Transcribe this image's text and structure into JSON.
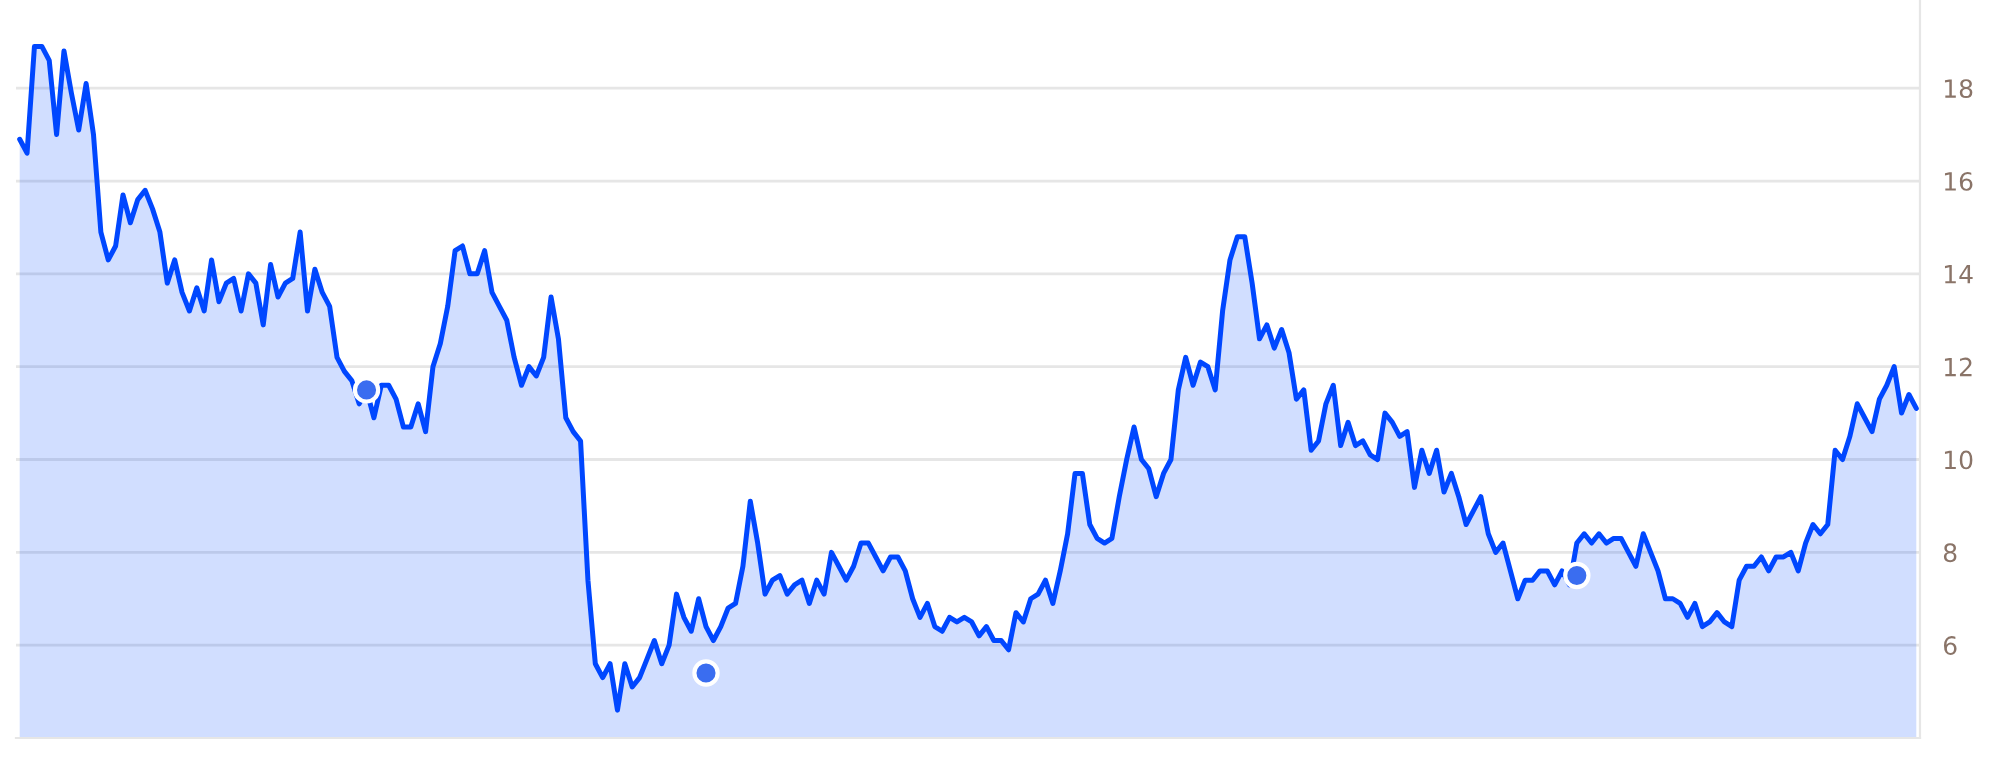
{
  "chart_data": {
    "type": "area",
    "categories": [
      null,
      null,
      null,
      null,
      null,
      null,
      null,
      null,
      null,
      null,
      null,
      null,
      null,
      null,
      null,
      null,
      null,
      null,
      null,
      null,
      null,
      null,
      null,
      null,
      null,
      null,
      null,
      null,
      null,
      null,
      null,
      null,
      null,
      null,
      null,
      null,
      null,
      null,
      null,
      null,
      null,
      null,
      null,
      null,
      null,
      null,
      null,
      null,
      null,
      null,
      null,
      null,
      null,
      null,
      null,
      null,
      null,
      null,
      null,
      null,
      null,
      null,
      null,
      null,
      null,
      null,
      null,
      null,
      null,
      null,
      null,
      null,
      null,
      null,
      null,
      null,
      null,
      null,
      null,
      null,
      null,
      null,
      null,
      null,
      null,
      null,
      null,
      null,
      null,
      null,
      null,
      null,
      null,
      null,
      null,
      null,
      null,
      null,
      null,
      null,
      null,
      null,
      null,
      null,
      null,
      null,
      null,
      null,
      null,
      null,
      null,
      null,
      null,
      null,
      null,
      null,
      null,
      null,
      null,
      null,
      null,
      null,
      null,
      null,
      null,
      null,
      null,
      null,
      null,
      null,
      null,
      null,
      null,
      null,
      null,
      null,
      null,
      null,
      null,
      null,
      null,
      null,
      null,
      null,
      null,
      null,
      null,
      null,
      null,
      null,
      null,
      null,
      null,
      null,
      null,
      null,
      null,
      null,
      null,
      null,
      null,
      null,
      null,
      null,
      null,
      null,
      null,
      null,
      null,
      null,
      null,
      null,
      null,
      null,
      null,
      null,
      null,
      null,
      null,
      null,
      null,
      null,
      null,
      null,
      null,
      null,
      null,
      null,
      null,
      null,
      null,
      null,
      null,
      null,
      null,
      null,
      null,
      null,
      null,
      null,
      null,
      null,
      null,
      null,
      null,
      null,
      null,
      null,
      null,
      null,
      null,
      null,
      null,
      null,
      null,
      null,
      null,
      null,
      null,
      null,
      null,
      null,
      null,
      null,
      null,
      null,
      null,
      null,
      null,
      null,
      null,
      null,
      null,
      null,
      null,
      null,
      null,
      null,
      null,
      null,
      null,
      null,
      null,
      null,
      null,
      null,
      null,
      null,
      null,
      null,
      null,
      null,
      null,
      null,
      null,
      null,
      null,
      null
    ],
    "series": [
      {
        "color": "#0047ff",
        "values": [
          16.9,
          16.6,
          18.9,
          18.9,
          18.6,
          17.0,
          18.8,
          17.9,
          17.1,
          18.1,
          17.0,
          14.9,
          14.3,
          14.6,
          15.7,
          15.1,
          15.6,
          15.8,
          15.4,
          14.9,
          13.8,
          14.3,
          13.6,
          13.2,
          13.7,
          13.2,
          14.3,
          13.4,
          13.8,
          13.9,
          13.2,
          14.0,
          13.8,
          12.9,
          14.2,
          13.5,
          13.8,
          13.9,
          14.9,
          13.2,
          14.1,
          13.6,
          13.3,
          12.2,
          11.9,
          11.7,
          11.2,
          11.5,
          10.9,
          11.6,
          11.6,
          11.3,
          10.7,
          10.7,
          11.2,
          10.6,
          12.0,
          12.5,
          13.3,
          14.5,
          14.6,
          14.0,
          14.0,
          14.5,
          13.6,
          13.3,
          13.0,
          12.2,
          11.6,
          12.0,
          11.8,
          12.2,
          13.5,
          12.6,
          10.9,
          10.6,
          10.4,
          7.4,
          5.6,
          5.3,
          5.6,
          4.6,
          5.6,
          5.1,
          5.3,
          5.7,
          6.1,
          5.6,
          6.0,
          7.1,
          6.6,
          6.3,
          7.0,
          6.4,
          6.1,
          6.4,
          6.8,
          6.9,
          7.7,
          9.1,
          8.2,
          7.1,
          7.4,
          7.5,
          7.1,
          7.3,
          7.4,
          6.9,
          7.4,
          7.1,
          8.0,
          7.7,
          7.4,
          7.7,
          8.2,
          8.2,
          7.9,
          7.6,
          7.9,
          7.9,
          7.6,
          7.0,
          6.6,
          6.9,
          6.4,
          6.3,
          6.6,
          6.5,
          6.6,
          6.5,
          6.2,
          6.4,
          6.1,
          6.1,
          5.9,
          6.7,
          6.5,
          7.0,
          7.1,
          7.4,
          6.9,
          7.6,
          8.4,
          9.7,
          9.7,
          8.6,
          8.3,
          8.2,
          8.3,
          9.2,
          10.0,
          10.7,
          10.0,
          9.8,
          9.2,
          9.7,
          10.0,
          11.5,
          12.2,
          11.6,
          12.1,
          12.0,
          11.5,
          13.2,
          14.3,
          14.8,
          14.8,
          13.8,
          12.6,
          12.9,
          12.4,
          12.8,
          12.3,
          11.3,
          11.5,
          10.2,
          10.4,
          11.2,
          11.6,
          10.3,
          10.8,
          10.3,
          10.4,
          10.1,
          10.0,
          11.0,
          10.8,
          10.5,
          10.6,
          9.4,
          10.2,
          9.7,
          10.2,
          9.3,
          9.7,
          9.2,
          8.6,
          8.9,
          9.2,
          8.4,
          8.0,
          8.2,
          7.6,
          7.0,
          7.4,
          7.4,
          7.6,
          7.6,
          7.3,
          7.6,
          7.3,
          8.2,
          8.4,
          8.2,
          8.4,
          8.2,
          8.3,
          8.3,
          8.0,
          7.7,
          8.4,
          8.0,
          7.6,
          7.0,
          7.0,
          6.9,
          6.6,
          6.9,
          6.4,
          6.5,
          6.7,
          6.5,
          6.4,
          7.4,
          7.7,
          7.7,
          7.9,
          7.6,
          7.9,
          7.9,
          8.0,
          7.6,
          8.2,
          8.6,
          8.4,
          8.6,
          10.2,
          10.0,
          10.5,
          11.2,
          10.9,
          10.6,
          11.3,
          11.6,
          12.0,
          11.0,
          11.4,
          11.1
        ]
      },
      {
        "type": "scatter",
        "marker": "circle",
        "color": "#3a6df0",
        "values": [
          null,
          null,
          null,
          null,
          null,
          null,
          null,
          null,
          null,
          null,
          null,
          null,
          null,
          null,
          null,
          null,
          null,
          null,
          null,
          null,
          null,
          null,
          null,
          null,
          null,
          null,
          null,
          null,
          null,
          null,
          null,
          null,
          null,
          null,
          null,
          null,
          null,
          null,
          null,
          null,
          null,
          null,
          null,
          null,
          null,
          null,
          null,
          11.5,
          null,
          null,
          null,
          null,
          null,
          null,
          null,
          null,
          null,
          null,
          null,
          null,
          null,
          null,
          null,
          null,
          null,
          null,
          null,
          null,
          null,
          null,
          null,
          null,
          null,
          null,
          null,
          null,
          null,
          null,
          null,
          null,
          null,
          null,
          null,
          null,
          null,
          null,
          null,
          null,
          null,
          null,
          null,
          null,
          null,
          5.4,
          null,
          null,
          null,
          null,
          null,
          null,
          null,
          null,
          null,
          null,
          null,
          null,
          null,
          null,
          null,
          null,
          null,
          null,
          null,
          null,
          null,
          null,
          null,
          null,
          null,
          null,
          null,
          null,
          null,
          null,
          null,
          null,
          null,
          null,
          null,
          null,
          null,
          null,
          null,
          null,
          null,
          null,
          null,
          null,
          null,
          null,
          null,
          null,
          null,
          null,
          null,
          null,
          null,
          null,
          null,
          null,
          null,
          null,
          null,
          null,
          null,
          null,
          null,
          null,
          null,
          null,
          null,
          null,
          null,
          null,
          null,
          null,
          null,
          null,
          null,
          null,
          null,
          null,
          null,
          null,
          null,
          null,
          null,
          null,
          null,
          null,
          null,
          null,
          null,
          null,
          null,
          null,
          null,
          null,
          null,
          null,
          null,
          null,
          null,
          null,
          null,
          null,
          null,
          null,
          null,
          null,
          null,
          null,
          null,
          null,
          null,
          null,
          null,
          null,
          null,
          null,
          null,
          7.5,
          null,
          null,
          null,
          null,
          null,
          null,
          null,
          null,
          null,
          null,
          null,
          null,
          null,
          null,
          null,
          null,
          null,
          null,
          null,
          null,
          null,
          null,
          null,
          null,
          null,
          null,
          null,
          null,
          null,
          null,
          null,
          null,
          null,
          null,
          null,
          null,
          null,
          null,
          null,
          null,
          null,
          null,
          null,
          null,
          null,
          null
        ]
      }
    ],
    "ylim": [
      4,
      19.9
    ],
    "yticks": [
      6,
      8,
      10,
      12,
      14,
      16,
      18
    ],
    "grid": "y",
    "tick_labels": "y"
  }
}
